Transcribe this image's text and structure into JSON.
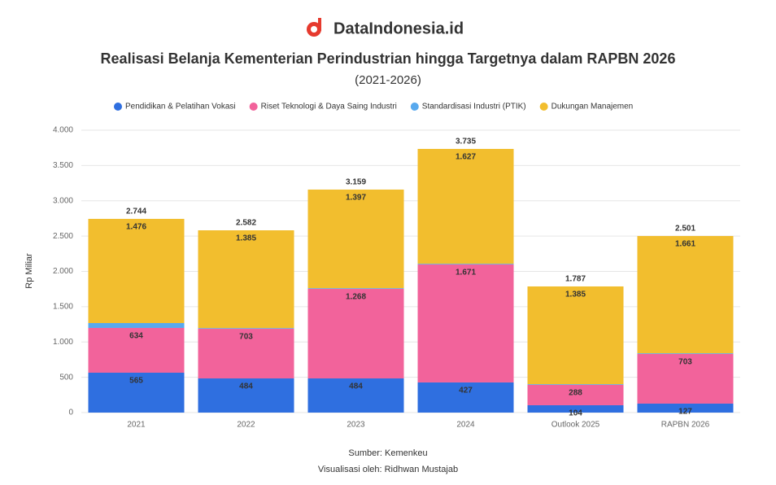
{
  "brand": "DataIndonesia.id",
  "chart_data": {
    "type": "stacked_bar",
    "title": "Realisasi Belanja Kementerian Perindustrian hingga Targetnya dalam RAPBN 2026",
    "subtitle": "(2021-2026)",
    "y_label": "Rp Miliar",
    "categories": [
      "2021",
      "2022",
      "2023",
      "2024",
      "Outlook 2025",
      "RAPBN 2026"
    ],
    "series": [
      {
        "name": "Pendidikan & Pelatihan Vokasi",
        "color": "#2f6fe0",
        "values": [
          565,
          484,
          484,
          427,
          104,
          127
        ],
        "value_labels": [
          "565",
          "484",
          "484",
          "427",
          "104",
          "127"
        ]
      },
      {
        "name": "Riset Teknologi & Daya Saing Industri",
        "color": "#f2639b",
        "values": [
          634,
          703,
          1268,
          1671,
          288,
          703
        ],
        "value_labels": [
          "634",
          "703",
          "1.268",
          "1.671",
          "288",
          "703"
        ]
      },
      {
        "name": "Standardisasi Industri (PTIK)",
        "color": "#58a9ee",
        "values": [
          69,
          10,
          10,
          10,
          10,
          10
        ]
      },
      {
        "name": "Dukungan Manajemen",
        "color": "#f2be2e",
        "values": [
          1476,
          1385,
          1397,
          1627,
          1385,
          1661
        ],
        "value_labels": [
          "1.476",
          "1.385",
          "1.397",
          "1.627",
          "1.385",
          "1.661"
        ]
      }
    ],
    "totals": {
      "values": [
        2744,
        2582,
        3159,
        3735,
        1787,
        2501
      ],
      "value_labels": [
        "2.744",
        "2.582",
        "3.159",
        "3.735",
        "1.787",
        "2.501"
      ]
    },
    "ylim": [
      0,
      4000
    ],
    "yticks": [
      0,
      500,
      {
        "value": 1000,
        "label": "1.000"
      },
      {
        "value": 1500,
        "label": "1.500"
      },
      {
        "value": 2000,
        "label": "2.000"
      },
      {
        "value": 2500,
        "label": "2.500"
      },
      {
        "value": 3000,
        "label": "3.000"
      },
      {
        "value": 3500,
        "label": "3.500"
      },
      {
        "value": 4000,
        "label": "4.000"
      }
    ],
    "grid": true,
    "legend": "top",
    "source": "Sumber: Kemenkeu",
    "credit": "Visualisasi oleh: Ridhwan Mustajab"
  }
}
